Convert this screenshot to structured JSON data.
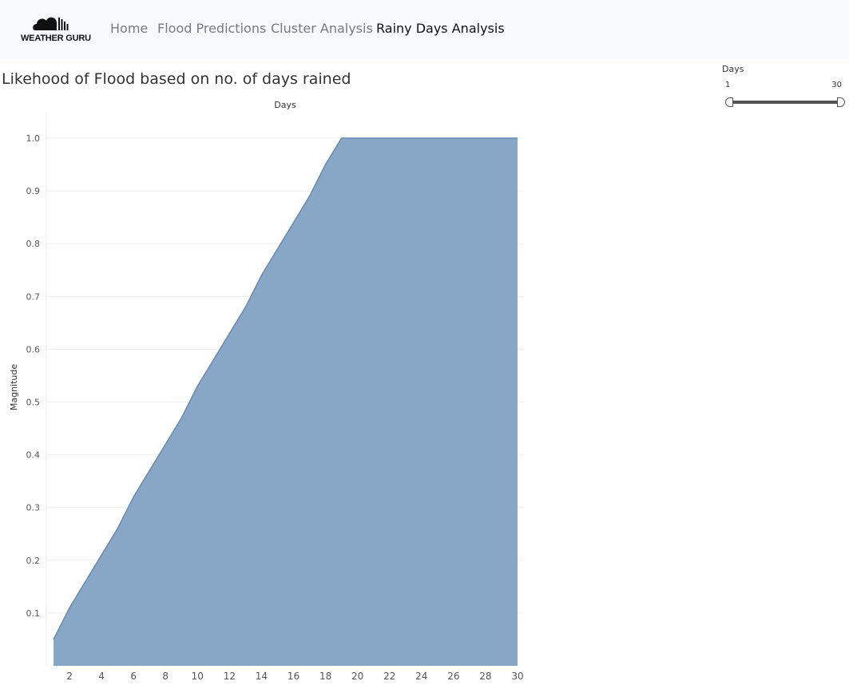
{
  "brand": {
    "logo_text": "WEATHER GURU",
    "logo_icon": "cloud-icon"
  },
  "nav": {
    "items": [
      {
        "label": "Home",
        "active": false
      },
      {
        "label": "Flood Predictions",
        "active": false
      },
      {
        "label": "Cluster Analysis",
        "active": false
      },
      {
        "label": "Rainy Days Analysis",
        "active": true
      }
    ]
  },
  "filter": {
    "title": "Days",
    "min": "1",
    "max": "30",
    "range": [
      1,
      30
    ]
  },
  "colors": {
    "area_fill": "#7b9cc0",
    "area_stroke": "#6b8ab0",
    "gridline": "#eeeeee",
    "nav_active": "#111111",
    "nav_inactive": "#7a7a7a"
  },
  "chart_data": {
    "type": "area",
    "title": "Likehood of Flood based on no. of days rained",
    "xlabel": "Days",
    "ylabel": "Magnitude",
    "x": [
      1,
      2,
      3,
      4,
      5,
      6,
      7,
      8,
      9,
      10,
      11,
      12,
      13,
      14,
      15,
      16,
      17,
      18,
      19,
      20,
      21,
      22,
      23,
      24,
      25,
      26,
      27,
      28,
      29,
      30
    ],
    "values": [
      0.05,
      0.11,
      0.16,
      0.21,
      0.26,
      0.32,
      0.37,
      0.42,
      0.47,
      0.53,
      0.58,
      0.63,
      0.68,
      0.74,
      0.79,
      0.84,
      0.89,
      0.95,
      1.0,
      1.0,
      1.0,
      1.0,
      1.0,
      1.0,
      1.0,
      1.0,
      1.0,
      1.0,
      1.0,
      1.0
    ],
    "xticks": [
      "2",
      "4",
      "6",
      "8",
      "10",
      "12",
      "14",
      "16",
      "18",
      "20",
      "22",
      "24",
      "26",
      "28",
      "30"
    ],
    "xtick_values": [
      2,
      4,
      6,
      8,
      10,
      12,
      14,
      16,
      18,
      20,
      22,
      24,
      26,
      28,
      30
    ],
    "yticks": [
      "0.1",
      "0.2",
      "0.3",
      "0.4",
      "0.5",
      "0.6",
      "0.7",
      "0.8",
      "0.9",
      "1.0"
    ],
    "ytick_values": [
      0.1,
      0.2,
      0.3,
      0.4,
      0.5,
      0.6,
      0.7,
      0.8,
      0.9,
      1.0
    ],
    "xlim": [
      1,
      30
    ],
    "ylim": [
      0,
      1.0
    ],
    "grid": true,
    "xaxis_title_position": "top"
  }
}
